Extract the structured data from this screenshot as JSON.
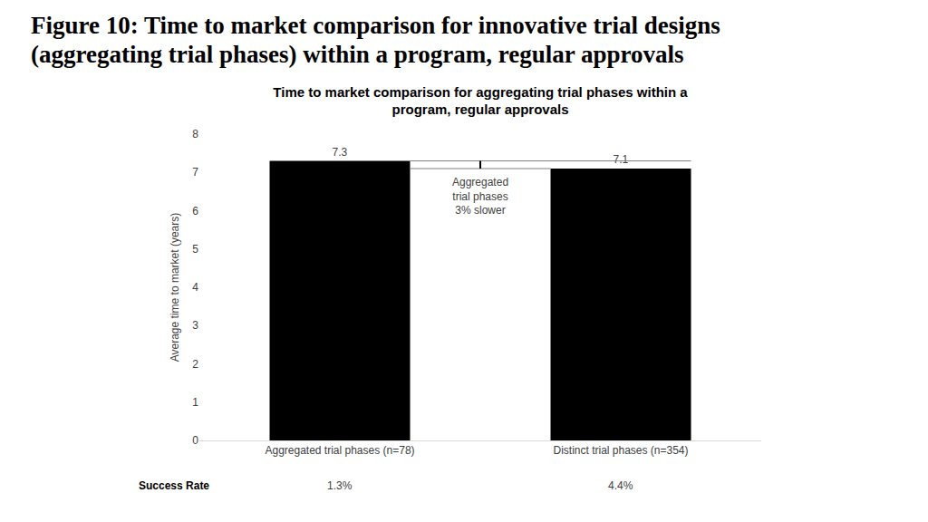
{
  "chart_data": {
    "type": "bar",
    "heading": "Figure 10: Time to market comparison for innovative trial designs\n(aggregating trial phases) within a program, regular approvals",
    "title": "Time to market comparison for aggregating trial phases within a\nprogram, regular approvals",
    "y_label": "Average time to market (years)",
    "categories": [
      "Aggregated trial phases (n=78)",
      "Distinct trial phases (n=354)"
    ],
    "values": [
      7.3,
      7.1
    ],
    "color": "#000000",
    "data_labels": true,
    "ylim": [
      0,
      8
    ],
    "yticks": [
      0,
      1,
      2,
      3,
      4,
      5,
      6,
      7,
      8
    ],
    "grid": false,
    "annotations": [
      "Aggregated\ntrial phases\n3% slower"
    ],
    "success_rate": {
      "label": "Success Rate",
      "labels": [
        "1.3%",
        "4.4%"
      ]
    }
  }
}
